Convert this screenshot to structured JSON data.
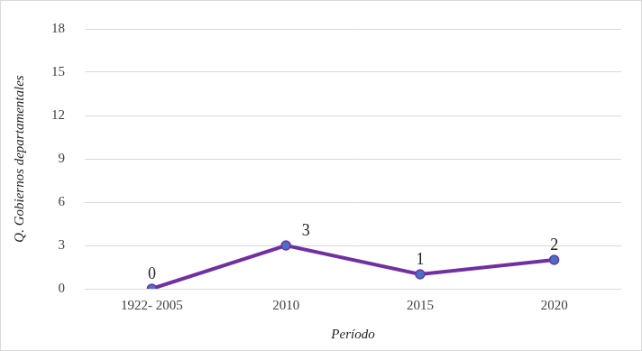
{
  "chart_data": {
    "type": "line",
    "x_label": "Período",
    "y_label": "Q. Gobiernos departamentales",
    "categories": [
      "1922- 2005",
      "2010",
      "2015",
      "2020"
    ],
    "values": [
      0,
      3,
      1,
      2
    ],
    "color": "#7030a0",
    "marker": "circle",
    "ylim": [
      0,
      18
    ],
    "yticks": [
      0,
      3,
      6,
      9,
      12,
      15,
      18
    ],
    "grid": true,
    "data_labels": true
  }
}
